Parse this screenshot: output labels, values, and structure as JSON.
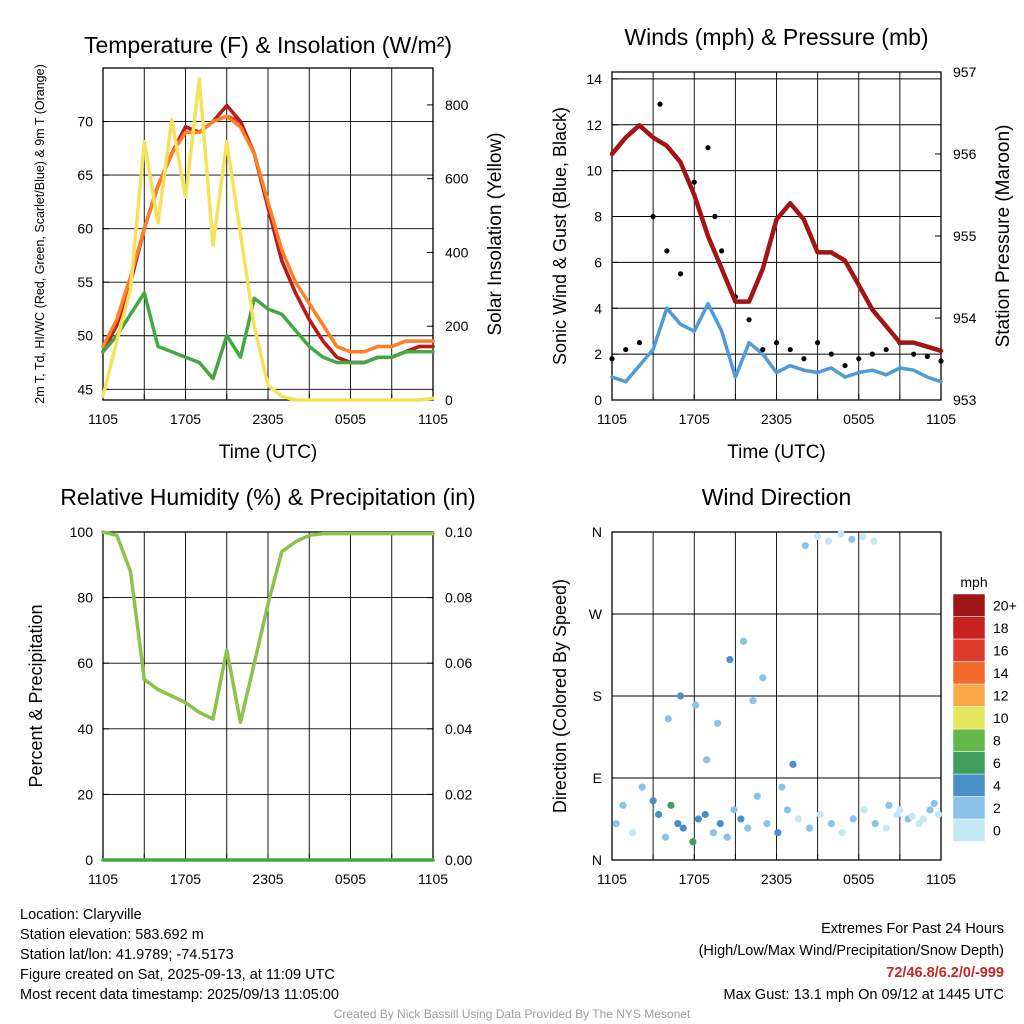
{
  "chart_data": [
    {
      "id": "temp",
      "type": "line",
      "title": "Temperature (F) & Insolation (W/m²)",
      "xlabel": "Time (UTC)",
      "ylabel_left": "2m T, Td, HI/WC (Red, Green, Scarlet/Blue) & 9m T (Orange)",
      "ylabel_right": "Solar Insolation (Yellow)",
      "x_tick_labels": [
        "1105",
        "1705",
        "2305",
        "0505",
        "1105"
      ],
      "y_left_ticks": [
        "45",
        "50",
        "55",
        "60",
        "65",
        "70"
      ],
      "y_left_range": [
        44,
        75
      ],
      "y_right_ticks": [
        "0",
        "200",
        "400",
        "600",
        "800"
      ],
      "y_right_range": [
        0,
        900
      ],
      "grid": true,
      "series": [
        {
          "role": "2m T",
          "color": "#e53935",
          "axis": "left",
          "x": [
            0,
            1,
            2,
            3,
            4,
            5,
            6,
            7,
            8,
            9,
            10,
            11,
            12,
            13,
            14,
            15,
            16,
            17,
            18,
            19,
            20,
            21,
            22,
            23,
            24
          ],
          "y": [
            48.5,
            51,
            55,
            60,
            64,
            67,
            69.5,
            69,
            70,
            70.5,
            70,
            67,
            62,
            57,
            54,
            51.5,
            49.5,
            48,
            47.5,
            47.5,
            48,
            48,
            48.5,
            49,
            49
          ]
        },
        {
          "role": "HI/WC",
          "color": "#b71c1c",
          "axis": "left",
          "x": [
            0,
            1,
            2,
            3,
            4,
            5,
            6,
            7,
            8,
            9,
            10,
            11,
            12,
            13,
            14,
            15,
            16,
            17,
            18,
            19,
            20,
            21,
            22,
            23,
            24
          ],
          "y": [
            48.5,
            51,
            55,
            60,
            64,
            67,
            69.5,
            69,
            70,
            71.5,
            70,
            67,
            62,
            57,
            54,
            51.5,
            49.5,
            48,
            47.5,
            47.5,
            48,
            48,
            48.5,
            49,
            49
          ]
        },
        {
          "role": "9m T",
          "color": "#ff7f27",
          "axis": "left",
          "x": [
            0,
            1,
            2,
            3,
            4,
            5,
            6,
            7,
            8,
            9,
            10,
            11,
            12,
            13,
            14,
            15,
            16,
            17,
            18,
            19,
            20,
            21,
            22,
            23,
            24
          ],
          "y": [
            49,
            51.5,
            55.5,
            60,
            64,
            67,
            69,
            69,
            70,
            70.5,
            69.5,
            67,
            62.5,
            58,
            55,
            53,
            51,
            49,
            48.5,
            48.5,
            49,
            49,
            49.5,
            49.5,
            49.5
          ]
        },
        {
          "role": "Td",
          "color": "#43a843",
          "axis": "left",
          "x": [
            0,
            1,
            2,
            3,
            4,
            5,
            6,
            7,
            8,
            9,
            10,
            11,
            12,
            13,
            14,
            15,
            16,
            17,
            18,
            19,
            20,
            21,
            22,
            23,
            24
          ],
          "y": [
            48.5,
            50,
            52,
            54,
            49,
            48.5,
            48,
            47.5,
            46,
            50,
            48,
            53.5,
            52.5,
            52,
            50.5,
            49,
            48,
            47.5,
            47.5,
            47.5,
            48,
            48,
            48.5,
            48.5,
            48.5
          ]
        },
        {
          "role": "Insolation",
          "color": "#f5e25a",
          "axis": "right",
          "x": [
            0,
            1,
            2,
            3,
            4,
            5,
            6,
            7,
            8,
            9,
            10,
            11,
            12,
            13,
            14,
            15,
            16,
            17,
            18,
            19,
            20,
            21,
            22,
            23,
            24
          ],
          "y": [
            10,
            160,
            300,
            700,
            480,
            760,
            550,
            870,
            420,
            700,
            450,
            200,
            40,
            10,
            0,
            0,
            0,
            0,
            0,
            0,
            0,
            0,
            0,
            0,
            5
          ]
        }
      ]
    },
    {
      "id": "wind",
      "type": "line",
      "title": "Winds (mph) & Pressure (mb)",
      "xlabel": "Time (UTC)",
      "ylabel_left": "Sonic Wind & Gust (Blue, Black)",
      "ylabel_right": "Station Pressure (Maroon)",
      "x_tick_labels": [
        "1105",
        "1705",
        "2305",
        "0505",
        "1105"
      ],
      "y_left_ticks": [
        "0",
        "2",
        "4",
        "6",
        "8",
        "10",
        "12",
        "14"
      ],
      "y_left_range": [
        0,
        14.3
      ],
      "y_right_ticks": [
        "953",
        "954",
        "955",
        "956",
        "957"
      ],
      "y_right_range": [
        953,
        957
      ],
      "grid": true,
      "series": [
        {
          "role": "Sonic Wind",
          "color": "#4f9bd6",
          "axis": "left",
          "x": [
            0,
            1,
            2,
            3,
            4,
            5,
            6,
            7,
            8,
            9,
            10,
            11,
            12,
            13,
            14,
            15,
            16,
            17,
            18,
            19,
            20,
            21,
            22,
            23,
            24
          ],
          "y": [
            1,
            0.8,
            1.5,
            2.2,
            4.0,
            3.3,
            3.0,
            4.2,
            3.0,
            1.0,
            2.5,
            2.0,
            1.2,
            1.5,
            1.3,
            1.2,
            1.4,
            1.0,
            1.2,
            1.3,
            1.1,
            1.4,
            1.3,
            1.0,
            0.8
          ]
        },
        {
          "role": "Gust",
          "color": "#000000",
          "axis": "left",
          "style": "points",
          "x": [
            0,
            1,
            2,
            3,
            3.5,
            4,
            5,
            6,
            7,
            7.5,
            8,
            9,
            10,
            11,
            12,
            13,
            14,
            15,
            16,
            17,
            18,
            19,
            20,
            21,
            22,
            23,
            24
          ],
          "y": [
            1.8,
            2.2,
            2.5,
            8,
            12.9,
            6.5,
            5.5,
            9.5,
            11,
            8,
            6.5,
            4.5,
            3.5,
            2.2,
            2.5,
            2.2,
            1.8,
            2.5,
            2.0,
            1.5,
            1.8,
            2.0,
            2.2,
            2.5,
            2.0,
            1.9,
            1.7
          ]
        },
        {
          "role": "Station Pressure",
          "color": "#a31515",
          "axis": "right",
          "x": [
            0,
            1,
            2,
            3,
            4,
            5,
            6,
            7,
            8,
            9,
            10,
            11,
            12,
            13,
            14,
            15,
            16,
            17,
            18,
            19,
            20,
            21,
            22,
            23,
            24
          ],
          "y": [
            956.0,
            956.2,
            956.35,
            956.2,
            956.1,
            955.9,
            955.5,
            955.0,
            954.6,
            954.2,
            954.2,
            954.6,
            955.2,
            955.4,
            955.2,
            954.8,
            954.8,
            954.7,
            954.4,
            954.1,
            953.9,
            953.7,
            953.7,
            953.65,
            953.6
          ]
        }
      ]
    },
    {
      "id": "rh",
      "type": "line",
      "title": "Relative Humidity (%) & Precipitation (in)",
      "xlabel": "",
      "ylabel_left": "Percent & Precipitation",
      "x_tick_labels": [
        "1105",
        "1705",
        "2305",
        "0505",
        "1105"
      ],
      "y_left_ticks": [
        "0",
        "20",
        "40",
        "60",
        "80",
        "100"
      ],
      "y_left_range": [
        0,
        100
      ],
      "y_right_ticks": [
        "0.00",
        "0.02",
        "0.04",
        "0.06",
        "0.08",
        "0.10"
      ],
      "y_right_range": [
        0,
        0.1
      ],
      "grid": true,
      "series": [
        {
          "role": "Relative Humidity",
          "color": "#8bc34a",
          "axis": "left",
          "x": [
            0,
            1,
            2,
            3,
            4,
            5,
            6,
            7,
            8,
            9,
            10,
            11,
            12,
            13,
            14,
            15,
            16,
            17,
            18,
            19,
            20,
            21,
            22,
            23,
            24
          ],
          "y": [
            100,
            99,
            88,
            55,
            52,
            50,
            48,
            45,
            43,
            64,
            42,
            60,
            78,
            94,
            97,
            99,
            99.5,
            99.5,
            99.5,
            99.5,
            99.5,
            99.5,
            99.5,
            99.5,
            99.5
          ]
        },
        {
          "role": "Precipitation",
          "color": "#43a843",
          "axis": "right",
          "x": [
            0,
            24
          ],
          "y": [
            0,
            0
          ]
        }
      ]
    },
    {
      "id": "dir",
      "type": "scatter",
      "title": "Wind Direction",
      "xlabel": "",
      "ylabel_left": "Direction (Colored By Speed)",
      "x_tick_labels": [
        "1105",
        "1705",
        "2305",
        "0505",
        "1105"
      ],
      "y_left_ticks": [
        "N",
        "E",
        "S",
        "W",
        "N"
      ],
      "y_left_range": [
        0,
        360
      ],
      "grid": true,
      "colorbar": {
        "title": "mph",
        "labels": [
          "0",
          "2",
          "4",
          "6",
          "8",
          "10",
          "12",
          "14",
          "16",
          "18",
          "20+"
        ],
        "colors": [
          "#c5e8f7",
          "#89c3ea",
          "#4a8fc8",
          "#3f9e5c",
          "#63b84b",
          "#e5e55e",
          "#f8a849",
          "#f26b2c",
          "#e03a2d",
          "#c8201f",
          "#9e1515"
        ]
      },
      "series": [
        {
          "role": "Direction",
          "style": "points",
          "x": [
            0.3,
            0.8,
            1.5,
            2.2,
            3.0,
            3.4,
            3.9,
            4.3,
            4.8,
            5.2,
            5.9,
            6.3,
            6.8,
            7.4,
            7.9,
            8.4,
            8.9,
            9.4,
            9.9,
            10.6,
            11.3,
            12.1,
            12.8,
            13.6,
            14.4,
            15.2,
            16.0,
            16.8,
            17.6,
            18.4,
            19.2,
            20.0,
            20.8,
            21.6,
            22.4,
            23.2,
            23.8,
            4.1,
            5.0,
            6.1,
            6.9,
            7.7,
            8.6,
            9.6,
            10.3,
            11.0,
            12.4,
            13.2,
            14.1,
            15.0,
            15.8,
            16.7,
            17.5,
            18.3,
            19.1,
            20.2,
            21.0,
            21.9,
            22.7,
            23.5
          ],
          "y": [
            40,
            60,
            30,
            80,
            65,
            50,
            25,
            60,
            40,
            35,
            20,
            45,
            50,
            30,
            40,
            25,
            55,
            45,
            35,
            70,
            40,
            30,
            55,
            45,
            35,
            50,
            40,
            30,
            45,
            55,
            40,
            35,
            50,
            45,
            40,
            55,
            50,
            155,
            180,
            170,
            110,
            150,
            220,
            240,
            175,
            200,
            80,
            105,
            345,
            355,
            350,
            358,
            352,
            355,
            350,
            60,
            55,
            48,
            45,
            62
          ],
          "speed": [
            2,
            1,
            0,
            1,
            3,
            4,
            2,
            6,
            4,
            3,
            5,
            4,
            3,
            2,
            3,
            1,
            2,
            3,
            2,
            1,
            2,
            3,
            1,
            0,
            1,
            0,
            1,
            0,
            1,
            0,
            1,
            0,
            0,
            1,
            0,
            1,
            0,
            2,
            3,
            2,
            1,
            2,
            3,
            2,
            1,
            2,
            2,
            3,
            1,
            0,
            0,
            0,
            1,
            0,
            0,
            1,
            0,
            0,
            0,
            1
          ]
        }
      ]
    }
  ],
  "footer": {
    "location": "Location: Claryville",
    "elevation": "Station elevation: 583.692 m",
    "latlon": "Station lat/lon: 41.9789; -74.5173",
    "created": "Figure created on Sat, 2025-09-13, at 11:09 UTC",
    "recent": "Most recent data timestamp: 2025/09/13 11:05:00",
    "extremes_title": "Extremes For Past 24 Hours",
    "extremes_sub": "(High/Low/Max Wind/Precipitation/Snow Depth)",
    "extremes_values": "72/46.8/6.2/0/-999",
    "max_gust": "Max Gust: 13.1 mph On 09/12 at 1445 UTC",
    "credit": "Created By Nick Bassill Using Data Provided By The NYS Mesonet",
    "extremes_color": "#c62828"
  }
}
